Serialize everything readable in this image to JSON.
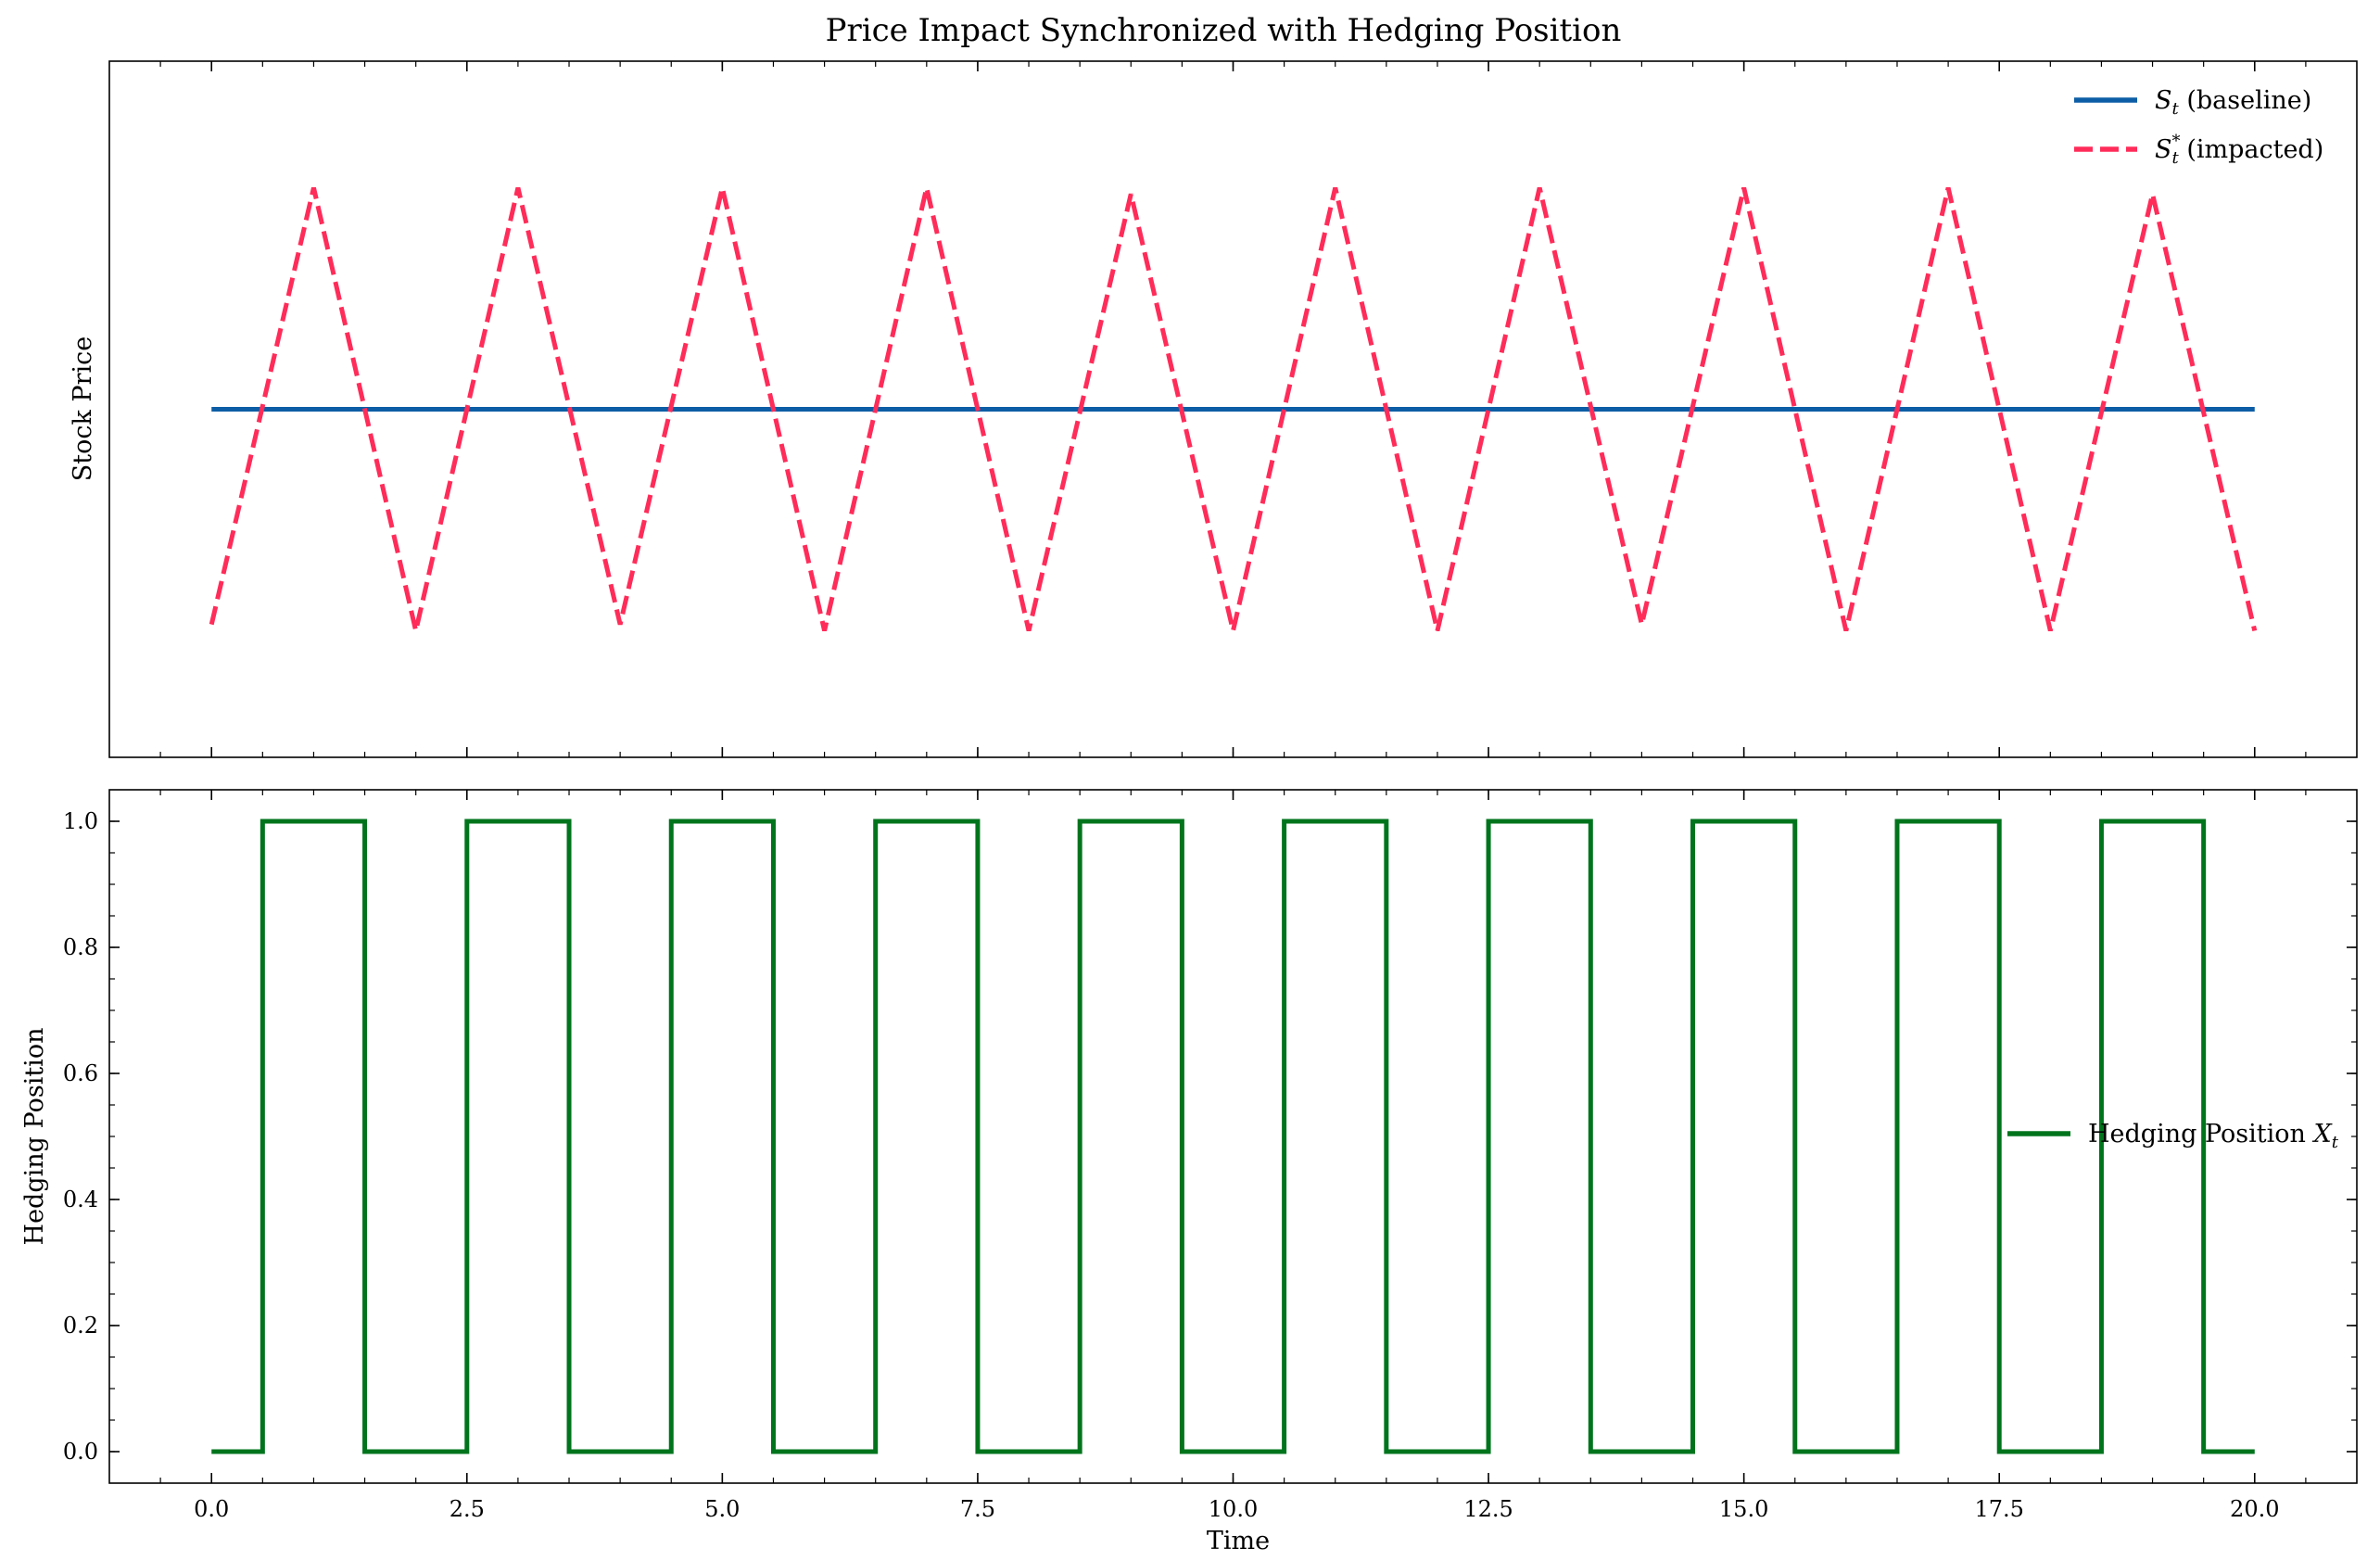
{
  "title": "Price Impact Synchronized with Hedging Position",
  "chart_data": [
    {
      "type": "line",
      "ylabel": "Stock Price",
      "xlim": [
        -1,
        21
      ],
      "ylim": [
        -0.55,
        0.55
      ],
      "y_ticks_labeled": false,
      "series": [
        {
          "name": "S_t (baseline)",
          "legend": {
            "main": "S",
            "sub": "t",
            "sup": "",
            "suffix": " (baseline)"
          },
          "color": "#0c5da5",
          "dash": "solid",
          "x": [
            0,
            20
          ],
          "y": [
            0,
            0
          ]
        },
        {
          "name": "S_t^* (impacted)",
          "legend": {
            "main": "S",
            "sub": "t",
            "sup": "*",
            "suffix": " (impacted)"
          },
          "color": "#ff2c59",
          "dash": "dashed",
          "x": [
            0,
            1,
            2,
            3,
            4,
            5,
            6,
            7,
            8,
            9,
            10,
            11,
            12,
            13,
            14,
            15,
            16,
            17,
            18,
            19,
            20
          ],
          "y": [
            -0.34,
            0.35,
            -0.35,
            0.35,
            -0.34,
            0.35,
            -0.35,
            0.35,
            -0.35,
            0.34,
            -0.35,
            0.35,
            -0.35,
            0.35,
            -0.34,
            0.35,
            -0.35,
            0.35,
            -0.35,
            0.34,
            -0.35
          ]
        }
      ],
      "legend_position": "upper-right"
    },
    {
      "type": "line",
      "xlabel": "Time",
      "ylabel": "Hedging Position",
      "xlim": [
        -1,
        21
      ],
      "ylim": [
        -0.05,
        1.05
      ],
      "x_ticks": [
        0,
        2.5,
        5,
        7.5,
        10,
        12.5,
        15,
        17.5,
        20
      ],
      "x_tick_labels": [
        "0.0",
        "2.5",
        "5.0",
        "7.5",
        "10.0",
        "12.5",
        "15.0",
        "17.5",
        "20.0"
      ],
      "y_ticks": [
        0,
        0.2,
        0.4,
        0.6,
        0.8,
        1.0
      ],
      "y_tick_labels": [
        "0.0",
        "0.2",
        "0.4",
        "0.6",
        "0.8",
        "1.0"
      ],
      "series": [
        {
          "name": "Hedging Position X_t",
          "legend": {
            "main": "Hedging Position ",
            "math": "X",
            "sub": "t"
          },
          "color": "#00741c",
          "dash": "solid",
          "x": [
            0,
            0.5,
            0.5,
            1.5,
            1.5,
            2.5,
            2.5,
            3.5,
            3.5,
            4.5,
            4.5,
            5.5,
            5.5,
            6.5,
            6.5,
            7.5,
            7.5,
            8.5,
            8.5,
            9.5,
            9.5,
            10.5,
            10.5,
            11.5,
            11.5,
            12.5,
            12.5,
            13.5,
            13.5,
            14.5,
            14.5,
            15.5,
            15.5,
            16.5,
            16.5,
            17.5,
            17.5,
            18.5,
            18.5,
            19.5,
            19.5,
            20
          ],
          "y": [
            0,
            0,
            1,
            1,
            0,
            0,
            1,
            1,
            0,
            0,
            1,
            1,
            0,
            0,
            1,
            1,
            0,
            0,
            1,
            1,
            0,
            0,
            1,
            1,
            0,
            0,
            1,
            1,
            0,
            0,
            1,
            1,
            0,
            0,
            1,
            1,
            0,
            0,
            1,
            1,
            0,
            0
          ]
        }
      ],
      "legend_position": "center-right"
    }
  ]
}
